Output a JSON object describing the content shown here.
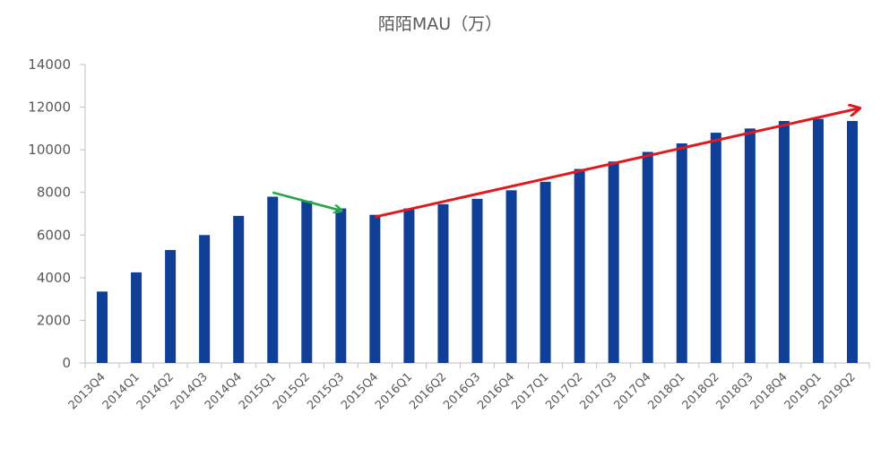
{
  "chart_data": {
    "type": "bar",
    "title": "陌陌MAU（万）",
    "xlabel": "",
    "ylabel": "",
    "ylim": [
      0,
      14000
    ],
    "yticks": [
      0,
      2000,
      4000,
      6000,
      8000,
      10000,
      12000,
      14000
    ],
    "grid": false,
    "legend": "none",
    "bar_color": "#0f3f96",
    "categories": [
      "2013Q4",
      "2014Q1",
      "2014Q2",
      "2014Q3",
      "2014Q4",
      "2015Q1",
      "2015Q2",
      "2015Q3",
      "2015Q4",
      "2016Q1",
      "2016Q2",
      "2016Q3",
      "2016Q4",
      "2017Q1",
      "2017Q2",
      "2017Q3",
      "2017Q4",
      "2018Q1",
      "2018Q2",
      "2018Q3",
      "2018Q4",
      "2019Q1",
      "2019Q2"
    ],
    "values": [
      3350,
      4250,
      5300,
      6000,
      6900,
      7800,
      7600,
      7250,
      6950,
      7250,
      7450,
      7700,
      8100,
      8500,
      9100,
      9450,
      9900,
      10300,
      10800,
      11000,
      11350,
      11450,
      11350
    ],
    "annotations": [
      {
        "type": "arrow",
        "color": "#22a84a",
        "from": {
          "category": "2015Q1",
          "value": 8000
        },
        "to": {
          "category": "2015Q3",
          "value": 7150
        }
      },
      {
        "type": "arrow",
        "color": "#e0191e",
        "from": {
          "category": "2015Q4",
          "value": 6850
        },
        "to": {
          "category": "2019Q2",
          "value": 11950
        }
      }
    ]
  }
}
